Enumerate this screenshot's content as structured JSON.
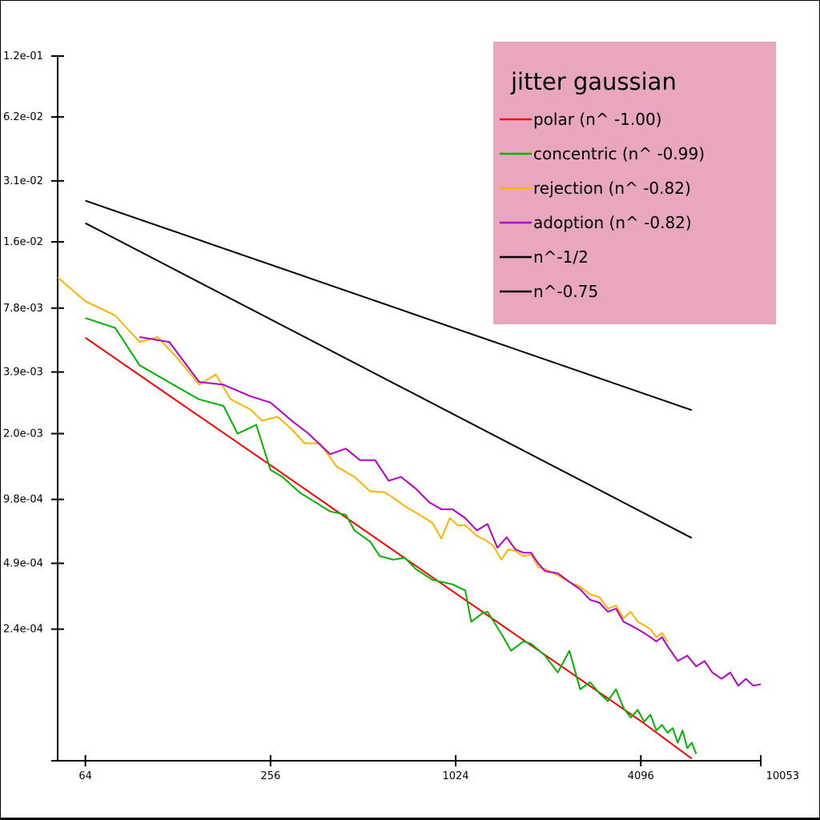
{
  "chart_data": {
    "type": "line",
    "title": "jitter gaussian",
    "xlabel": "",
    "ylabel": "",
    "x_scale": "log2",
    "y_scale": "log2",
    "xlim": [
      52,
      10053
    ],
    "ylim": [
      5.76e-05,
      0.12
    ],
    "grid": false,
    "legend_position": "top-right",
    "legend_background": "#e8a7be",
    "x_ticks": [
      64,
      256,
      1024,
      4096,
      10053
    ],
    "x_tick_labels": [
      "64",
      "256",
      "1024",
      "4096",
      "10053"
    ],
    "y_ticks": [
      0.12,
      0.062,
      0.031,
      0.016,
      0.0078,
      0.0039,
      0.002,
      0.00098,
      0.00049,
      0.00024
    ],
    "y_tick_labels": [
      "1.2e-01",
      "6.2e-02",
      "3.1e-02",
      "1.6e-02",
      "7.8e-03",
      "3.9e-03",
      "2.0e-03",
      "9.8e-04",
      "4.9e-04",
      "2.4e-04"
    ],
    "series": [
      {
        "name": "polar (n^ -1.00)",
        "color": "#ff0000",
        "points": [
          [
            64,
            0.00566
          ],
          [
            128,
            0.00283
          ],
          [
            256,
            0.00142
          ],
          [
            512,
            0.000708
          ],
          [
            1024,
            0.000354
          ],
          [
            2048,
            0.000177
          ],
          [
            4096,
            8.85e-05
          ],
          [
            6000,
            5.89e-05
          ]
        ]
      },
      {
        "name": "concentric (n^ -0.99)",
        "color": "#00b400",
        "points": [
          [
            64,
            0.007
          ],
          [
            80,
            0.0063
          ],
          [
            96,
            0.0042
          ],
          [
            128,
            0.0033
          ],
          [
            150,
            0.0029
          ],
          [
            180,
            0.0027
          ],
          [
            200,
            0.002
          ],
          [
            230,
            0.0022
          ],
          [
            256,
            0.00135
          ],
          [
            280,
            0.00125
          ],
          [
            320,
            0.00105
          ],
          [
            350,
            0.00097
          ],
          [
            400,
            0.00086
          ],
          [
            450,
            0.00083
          ],
          [
            480,
            0.0007
          ],
          [
            540,
            0.00062
          ],
          [
            580,
            0.00053
          ],
          [
            640,
            0.00051
          ],
          [
            700,
            0.00052
          ],
          [
            760,
            0.00046
          ],
          [
            860,
            0.00041
          ],
          [
            1000,
            0.00039
          ],
          [
            1100,
            0.000365
          ],
          [
            1150,
            0.00026
          ],
          [
            1250,
            0.000285
          ],
          [
            1300,
            0.00029
          ],
          [
            1450,
            0.000225
          ],
          [
            1550,
            0.00019
          ],
          [
            1700,
            0.00021
          ],
          [
            1800,
            0.000205
          ],
          [
            2000,
            0.00018
          ],
          [
            2200,
            0.00015
          ],
          [
            2400,
            0.00019
          ],
          [
            2600,
            0.000125
          ],
          [
            2800,
            0.000135
          ],
          [
            3000,
            0.00012
          ],
          [
            3200,
            0.00011
          ],
          [
            3400,
            0.000125
          ],
          [
            3600,
            0.000102
          ],
          [
            3800,
            9.2e-05
          ],
          [
            4000,
            0.0001
          ],
          [
            4200,
            8.8e-05
          ],
          [
            4400,
            9.5e-05
          ],
          [
            4600,
            8e-05
          ],
          [
            4800,
            8.5e-05
          ],
          [
            5000,
            7.8e-05
          ],
          [
            5200,
            8.2e-05
          ],
          [
            5400,
            7e-05
          ],
          [
            5600,
            8e-05
          ],
          [
            5800,
            6.6e-05
          ],
          [
            6000,
            7e-05
          ],
          [
            6200,
            6.2e-05
          ]
        ]
      },
      {
        "name": "rejection (n^ -0.82)",
        "color": "#ffb400",
        "points": [
          [
            52,
            0.0109
          ],
          [
            64,
            0.0084
          ],
          [
            80,
            0.0072
          ],
          [
            96,
            0.0054
          ],
          [
            110,
            0.0057
          ],
          [
            128,
            0.0045
          ],
          [
            150,
            0.0034
          ],
          [
            170,
            0.0038
          ],
          [
            190,
            0.0029
          ],
          [
            220,
            0.0026
          ],
          [
            240,
            0.0023
          ],
          [
            270,
            0.0024
          ],
          [
            300,
            0.0021
          ],
          [
            330,
            0.0018
          ],
          [
            370,
            0.0018
          ],
          [
            420,
            0.0014
          ],
          [
            480,
            0.00125
          ],
          [
            540,
            0.00107
          ],
          [
            600,
            0.00106
          ],
          [
            640,
            0.001
          ],
          [
            700,
            0.00091
          ],
          [
            780,
            0.00083
          ],
          [
            860,
            0.00076
          ],
          [
            920,
            0.00064
          ],
          [
            980,
            0.0008
          ],
          [
            1040,
            0.00074
          ],
          [
            1100,
            0.00074
          ],
          [
            1200,
            0.00066
          ],
          [
            1280,
            0.00063
          ],
          [
            1360,
            0.00059
          ],
          [
            1440,
            0.00051
          ],
          [
            1520,
            0.00057
          ],
          [
            1600,
            0.00056
          ],
          [
            1700,
            0.00053
          ],
          [
            1800,
            0.00054
          ],
          [
            1900,
            0.00047
          ],
          [
            2000,
            0.00046
          ],
          [
            2200,
            0.00043
          ],
          [
            2400,
            0.0004
          ],
          [
            2600,
            0.00038
          ],
          [
            2800,
            0.00035
          ],
          [
            3000,
            0.00034
          ],
          [
            3200,
            0.0003
          ],
          [
            3400,
            0.00031
          ],
          [
            3600,
            0.00027
          ],
          [
            3800,
            0.00029
          ],
          [
            4000,
            0.00026
          ],
          [
            4200,
            0.00025
          ],
          [
            4400,
            0.00024
          ],
          [
            4600,
            0.00022
          ],
          [
            4800,
            0.00023
          ],
          [
            5000,
            0.00021
          ]
        ]
      },
      {
        "name": "adoption (n^ -0.82)",
        "color": "#b400c8",
        "points": [
          [
            96,
            0.0057
          ],
          [
            120,
            0.0054
          ],
          [
            150,
            0.0035
          ],
          [
            180,
            0.0034
          ],
          [
            220,
            0.003
          ],
          [
            256,
            0.0028
          ],
          [
            300,
            0.0023
          ],
          [
            340,
            0.002
          ],
          [
            400,
            0.0016
          ],
          [
            450,
            0.0017
          ],
          [
            500,
            0.0015
          ],
          [
            560,
            0.0015
          ],
          [
            620,
            0.0012
          ],
          [
            680,
            0.00125
          ],
          [
            760,
            0.0011
          ],
          [
            840,
            0.00095
          ],
          [
            920,
            0.00088
          ],
          [
            1000,
            0.00088
          ],
          [
            1100,
            0.0008
          ],
          [
            1200,
            0.0007
          ],
          [
            1300,
            0.00075
          ],
          [
            1400,
            0.00058
          ],
          [
            1500,
            0.00065
          ],
          [
            1600,
            0.00057
          ],
          [
            1700,
            0.00055
          ],
          [
            1800,
            0.00055
          ],
          [
            1900,
            0.00049
          ],
          [
            2000,
            0.00045
          ],
          [
            2200,
            0.00044
          ],
          [
            2400,
            0.0004
          ],
          [
            2600,
            0.00037
          ],
          [
            2800,
            0.00033
          ],
          [
            3000,
            0.00032
          ],
          [
            3200,
            0.00029
          ],
          [
            3400,
            0.0003
          ],
          [
            3600,
            0.00026
          ],
          [
            3800,
            0.00025
          ],
          [
            4000,
            0.00024
          ],
          [
            4200,
            0.00023
          ],
          [
            4400,
            0.00022
          ],
          [
            4600,
            0.00021
          ],
          [
            4800,
            0.00022
          ],
          [
            5000,
            0.0002
          ],
          [
            5400,
            0.00017
          ],
          [
            5800,
            0.00018
          ],
          [
            6200,
            0.00016
          ],
          [
            6600,
            0.00017
          ],
          [
            7000,
            0.00015
          ],
          [
            7500,
            0.00014
          ],
          [
            8000,
            0.00015
          ],
          [
            8500,
            0.00013
          ],
          [
            9000,
            0.00014
          ],
          [
            9500,
            0.00013
          ],
          [
            10053,
            0.000132
          ]
        ]
      },
      {
        "name": "n^-1/2",
        "color": "#000000",
        "points": [
          [
            64,
            0.025
          ],
          [
            6000,
            0.00258
          ]
        ]
      },
      {
        "name": "n^-0.75",
        "color": "#000000",
        "points": [
          [
            64,
            0.0196
          ],
          [
            6000,
            0.000645
          ]
        ]
      }
    ]
  }
}
